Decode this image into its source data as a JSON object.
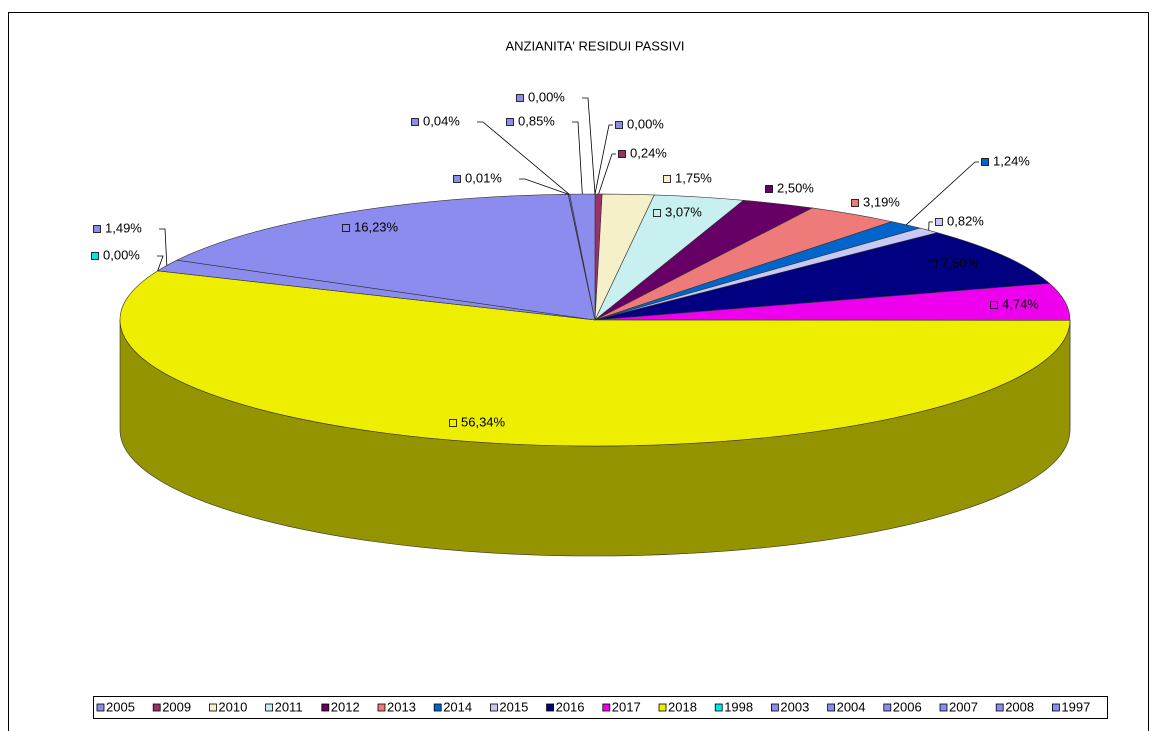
{
  "chart_data": {
    "type": "pie",
    "title": "ANZIANITA' RESIDUI PASSIVI",
    "categories": [
      "2005",
      "2009",
      "2010",
      "2011",
      "2012",
      "2013",
      "2014",
      "2015",
      "2016",
      "2017",
      "2018",
      "1998",
      "2003",
      "2004",
      "2006",
      "2007",
      "2008",
      "1997"
    ],
    "values": [
      0,
      0.24,
      1.75,
      3.07,
      2.5,
      3.19,
      1.24,
      0.82,
      7.5,
      4.74,
      56.34,
      0,
      1.49,
      16.23,
      0.01,
      0.04,
      0.85,
      0
    ],
    "value_labels": [
      "0,00%",
      "0,24%",
      "1,75%",
      "3,07%",
      "2,50%",
      "3,19%",
      "1,24%",
      "0,82%",
      "7,50%",
      "4,74%",
      "56,34%",
      "0,00%",
      "1,49%",
      "16,23%",
      "0,01%",
      "0,04%",
      "0,85%",
      "0,00%"
    ],
    "colors": [
      "#8c8cee",
      "#993366",
      "#f5f0c8",
      "#c8f0f0",
      "#660066",
      "#ee7a7a",
      "#0066cc",
      "#c8c8f5",
      "#000080",
      "#ee00ee",
      "#eeee00",
      "#00e6e6",
      "#8c8cee",
      "#8c8cee",
      "#8c8cee",
      "#8c8cee",
      "#8c8cee",
      "#8c8cee"
    ],
    "legend": "bottom"
  }
}
